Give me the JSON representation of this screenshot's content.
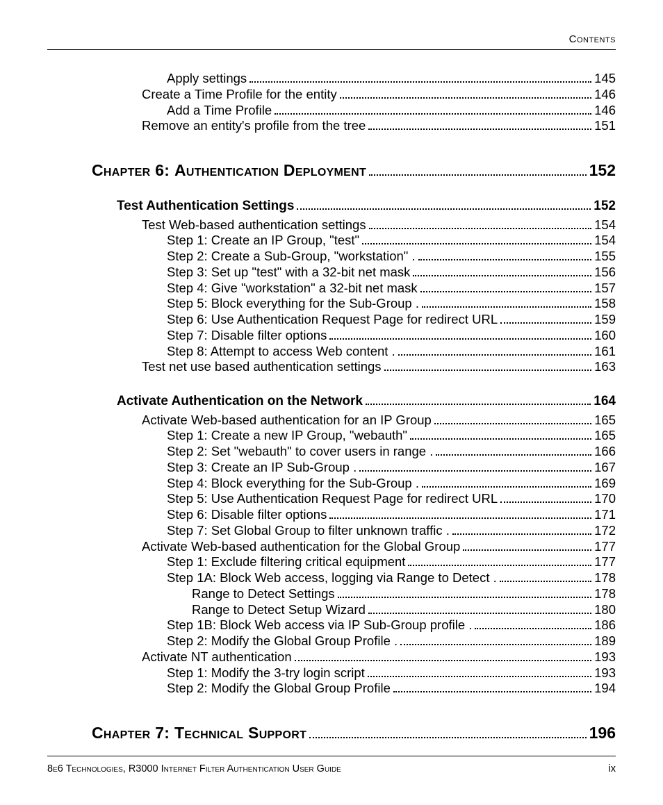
{
  "header": {
    "label": "Contents"
  },
  "footer": {
    "left": "8e6 Technologies, R3000 Internet Filter Authentication User Guide",
    "right": "ix"
  },
  "toc": {
    "top_entries": [
      {
        "indent": 2,
        "text": "Apply settings",
        "page": "145"
      },
      {
        "indent": 1,
        "text": "Create a Time Profile for the entity",
        "page": "146"
      },
      {
        "indent": 2,
        "text": "Add a Time Profile",
        "page": "146"
      },
      {
        "indent": 1,
        "text": "Remove an entity's profile from the tree",
        "page": "151"
      }
    ],
    "chapter6": {
      "heading_word1": "Chapter",
      "heading_num": " 6: ",
      "heading_word2": "Authentication ",
      "heading_word3": "Deployment",
      "page": "152",
      "section1": {
        "title": "Test Authentication Settings",
        "page": "152",
        "entries": [
          {
            "indent": 1,
            "text": "Test Web-based authentication settings",
            "page": "154"
          },
          {
            "indent": 2,
            "text": "Step 1: Create an IP Group, \"test\"",
            "page": "154"
          },
          {
            "indent": 2,
            "text": "Step 2: Create a Sub-Group, \"workstation\" .",
            "page": "155"
          },
          {
            "indent": 2,
            "text": "Step 3: Set up \"test\" with a 32-bit net mask",
            "page": "156"
          },
          {
            "indent": 2,
            "text": "Step 4: Give \"workstation\" a 32-bit net mask",
            "page": "157"
          },
          {
            "indent": 2,
            "text": "Step 5: Block everything for the Sub-Group .",
            "page": "158"
          },
          {
            "indent": 2,
            "text": "Step 6: Use Authentication Request Page for redirect URL",
            "page": "159"
          },
          {
            "indent": 2,
            "text": "Step 7: Disable filter options",
            "page": "160"
          },
          {
            "indent": 2,
            "text": "Step 8: Attempt to access Web content .",
            "page": "161"
          },
          {
            "indent": 1,
            "text": "Test net use based authentication settings",
            "page": "163"
          }
        ]
      },
      "section2": {
        "title": "Activate Authentication on the Network",
        "page": "164",
        "entries": [
          {
            "indent": 1,
            "text": "Activate Web-based authentication for an IP Group",
            "page": "165"
          },
          {
            "indent": 2,
            "text": "Step 1: Create a new IP Group, \"webauth\"",
            "page": "165"
          },
          {
            "indent": 2,
            "text": "Step 2: Set \"webauth\" to cover users in range .",
            "page": "166"
          },
          {
            "indent": 2,
            "text": "Step 3: Create an IP Sub-Group .",
            "page": "167"
          },
          {
            "indent": 2,
            "text": "Step 4: Block everything for the Sub-Group .",
            "page": "169"
          },
          {
            "indent": 2,
            "text": "Step 5: Use Authentication Request Page for redirect URL",
            "page": "170"
          },
          {
            "indent": 2,
            "text": "Step 6: Disable filter options",
            "page": "171"
          },
          {
            "indent": 2,
            "text": "Step 7: Set Global Group to filter unknown traffic .",
            "page": "172"
          },
          {
            "indent": 1,
            "text": "Activate Web-based authentication for the Global Group",
            "page": "177"
          },
          {
            "indent": 2,
            "text": "Step 1: Exclude filtering critical equipment",
            "page": "177"
          },
          {
            "indent": 2,
            "text": "Step 1A: Block Web access, logging via Range to Detect .",
            "page": "178"
          },
          {
            "indent": 3,
            "text": "Range to Detect Settings",
            "page": "178"
          },
          {
            "indent": 3,
            "text": "Range to Detect Setup Wizard",
            "page": "180"
          },
          {
            "indent": 2,
            "text": "Step 1B: Block Web access via IP Sub-Group profile .",
            "page": "186"
          },
          {
            "indent": 2,
            "text": "Step 2: Modify the Global Group Profile .",
            "page": "189"
          },
          {
            "indent": 1,
            "text": "Activate NT authentication",
            "page": "193"
          },
          {
            "indent": 2,
            "text": "Step 1: Modify the 3-try login script",
            "page": "193"
          },
          {
            "indent": 2,
            "text": "Step 2: Modify the Global Group Profile",
            "page": "194"
          }
        ]
      }
    },
    "chapter7": {
      "heading_word1": "Chapter",
      "heading_num": " 7: ",
      "heading_word2": "Technical ",
      "heading_word3": "Support",
      "page": "196"
    }
  }
}
